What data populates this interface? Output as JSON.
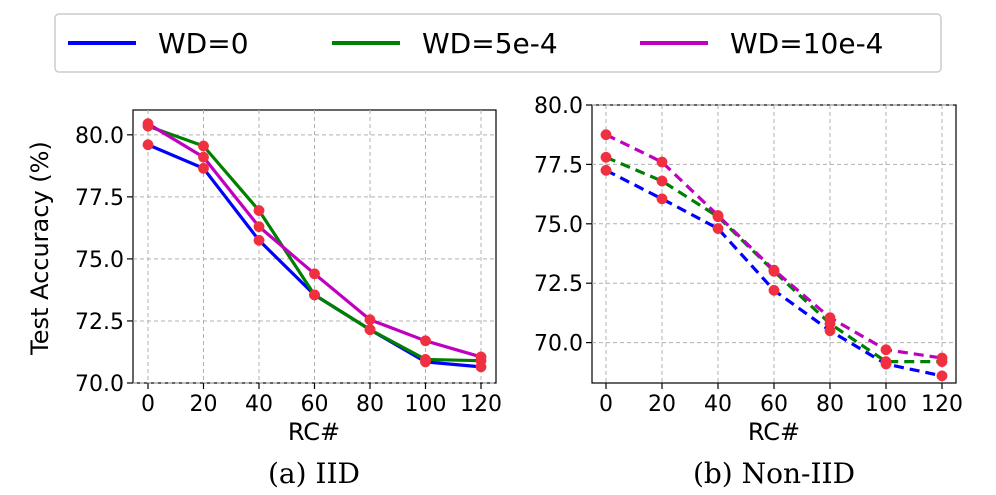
{
  "legend": [
    {
      "label": "WD=0",
      "color": "#0000ff"
    },
    {
      "label": "WD=5e-4",
      "color": "#008000"
    },
    {
      "label": "WD=10e-4",
      "color": "#c000c0"
    }
  ],
  "marker_color": "#f03040",
  "chart_data": [
    {
      "type": "line",
      "caption": "(a) IID",
      "xlabel": "RC#",
      "ylabel": "Test Accuracy (%)",
      "line_style": "solid",
      "x": [
        0,
        20,
        40,
        60,
        80,
        100,
        120
      ],
      "xticks": [
        "0",
        "20",
        "40",
        "60",
        "80",
        "100",
        "120"
      ],
      "yticks": [
        "70.0",
        "72.5",
        "75.0",
        "77.5",
        "80.0"
      ],
      "yticks_values": [
        70.0,
        72.5,
        75.0,
        77.5,
        80.0
      ],
      "ylim": [
        70.0,
        81.0
      ],
      "series": [
        {
          "name": "WD=0",
          "values": [
            79.6,
            78.65,
            75.75,
            73.55,
            72.15,
            70.85,
            70.65
          ]
        },
        {
          "name": "WD=5e-4",
          "values": [
            80.35,
            79.55,
            76.95,
            73.55,
            72.15,
            70.95,
            70.9
          ]
        },
        {
          "name": "WD=10e-4",
          "values": [
            80.45,
            79.1,
            76.3,
            74.4,
            72.55,
            71.7,
            71.05
          ]
        }
      ]
    },
    {
      "type": "line",
      "caption": "(b) Non-IID",
      "xlabel": "RC#",
      "ylabel": "",
      "line_style": "dashed",
      "x": [
        0,
        20,
        40,
        60,
        80,
        100,
        120
      ],
      "xticks": [
        "0",
        "20",
        "40",
        "60",
        "80",
        "100",
        "120"
      ],
      "yticks": [
        "70.0",
        "72.5",
        "75.0",
        "77.5",
        "80.0"
      ],
      "yticks_values": [
        70.0,
        72.5,
        75.0,
        77.5,
        80.0
      ],
      "ylim": [
        68.3,
        80.0
      ],
      "series": [
        {
          "name": "WD=0",
          "values": [
            77.25,
            76.05,
            74.8,
            72.2,
            70.5,
            69.1,
            68.6
          ]
        },
        {
          "name": "WD=5e-4",
          "values": [
            77.8,
            76.8,
            75.3,
            73.0,
            70.8,
            69.2,
            69.2
          ]
        },
        {
          "name": "WD=10e-4",
          "values": [
            78.75,
            77.6,
            75.35,
            73.05,
            71.05,
            69.7,
            69.35
          ]
        }
      ]
    }
  ]
}
